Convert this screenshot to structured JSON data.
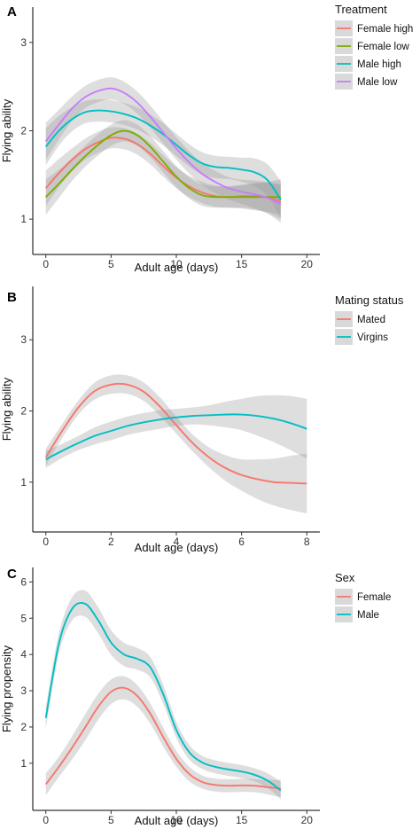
{
  "chart_data": [
    {
      "type": "line",
      "panel_label": "A",
      "xlabel": "Adult age (days)",
      "ylabel": "Flying ability",
      "xlim": [
        -1,
        21
      ],
      "ylim": [
        0.6,
        3.4
      ],
      "xticks": [
        "0",
        "5",
        "10",
        "15",
        "20"
      ],
      "yticks": [
        "1",
        "2",
        "3"
      ],
      "legend_title": "Treatment",
      "legend_position": "right",
      "ribbon": true,
      "series": [
        {
          "name": "Female  high",
          "color": "#F8766D",
          "x": [
            0,
            1,
            2,
            3,
            4,
            5,
            6,
            7,
            8,
            9,
            10,
            11,
            12,
            13,
            14,
            15,
            16,
            17,
            18
          ],
          "y": [
            1.35,
            1.52,
            1.67,
            1.79,
            1.87,
            1.92,
            1.91,
            1.85,
            1.74,
            1.6,
            1.47,
            1.37,
            1.3,
            1.26,
            1.25,
            1.26,
            1.26,
            1.24,
            1.2
          ]
        },
        {
          "name": "Female  low",
          "color": "#7CAE00",
          "x": [
            0,
            1,
            2,
            3,
            4,
            5,
            6,
            7,
            8,
            9,
            10,
            11,
            12,
            13,
            14,
            15,
            16,
            17,
            18
          ],
          "y": [
            1.25,
            1.4,
            1.56,
            1.71,
            1.84,
            1.95,
            2.0,
            1.95,
            1.82,
            1.65,
            1.48,
            1.35,
            1.27,
            1.25,
            1.25,
            1.25,
            1.25,
            1.25,
            1.25
          ]
        },
        {
          "name": "Male  high",
          "color": "#00BFC4",
          "x": [
            0,
            1,
            2,
            3,
            4,
            5,
            6,
            7,
            8,
            9,
            10,
            11,
            12,
            13,
            14,
            15,
            16,
            17,
            18
          ],
          "y": [
            1.82,
            2.0,
            2.13,
            2.21,
            2.23,
            2.22,
            2.19,
            2.14,
            2.06,
            1.96,
            1.84,
            1.72,
            1.63,
            1.59,
            1.58,
            1.56,
            1.53,
            1.44,
            1.22
          ]
        },
        {
          "name": "Male  low",
          "color": "#C77CFF",
          "x": [
            0,
            1,
            2,
            3,
            4,
            5,
            6,
            7,
            8,
            9,
            10,
            11,
            12,
            13,
            14,
            15,
            16,
            17,
            18
          ],
          "y": [
            1.88,
            2.07,
            2.25,
            2.38,
            2.45,
            2.48,
            2.43,
            2.32,
            2.16,
            1.98,
            1.8,
            1.64,
            1.51,
            1.42,
            1.35,
            1.31,
            1.28,
            1.24,
            1.17
          ]
        }
      ]
    },
    {
      "type": "line",
      "panel_label": "B",
      "xlabel": "Adult age (days)",
      "ylabel": "Flying ability",
      "xlim": [
        -0.4,
        8.4
      ],
      "ylim": [
        0.3,
        3.75
      ],
      "xticks": [
        "0",
        "2",
        "4",
        "6",
        "8"
      ],
      "yticks": [
        "1",
        "2",
        "3"
      ],
      "legend_title": "Mating  status",
      "legend_position": "right",
      "ribbon": true,
      "series": [
        {
          "name": "Mated",
          "color": "#F8766D",
          "x": [
            0,
            0.5,
            1,
            1.5,
            2,
            2.5,
            3,
            3.5,
            4,
            4.5,
            5,
            5.5,
            6,
            6.5,
            7,
            7.5,
            8
          ],
          "y": [
            1.35,
            1.72,
            2.05,
            2.28,
            2.37,
            2.37,
            2.27,
            2.06,
            1.8,
            1.55,
            1.35,
            1.2,
            1.1,
            1.04,
            1.0,
            0.99,
            0.98
          ]
        },
        {
          "name": "Virgins",
          "color": "#00BFC4",
          "x": [
            0,
            0.5,
            1,
            1.5,
            2,
            2.5,
            3,
            3.5,
            4,
            4.5,
            5,
            5.5,
            6,
            6.5,
            7,
            7.5,
            8
          ],
          "y": [
            1.32,
            1.44,
            1.55,
            1.65,
            1.72,
            1.79,
            1.84,
            1.88,
            1.91,
            1.93,
            1.94,
            1.95,
            1.95,
            1.93,
            1.89,
            1.83,
            1.75
          ]
        }
      ]
    },
    {
      "type": "line",
      "panel_label": "C",
      "xlabel": "Adult age (days)",
      "ylabel": "Flying propensity",
      "xlim": [
        -1,
        21
      ],
      "ylim": [
        -0.3,
        6.4
      ],
      "xticks": [
        "0",
        "5",
        "10",
        "15",
        "20"
      ],
      "yticks": [
        "1",
        "2",
        "3",
        "4",
        "5",
        "6"
      ],
      "legend_title": "Sex",
      "legend_position": "right",
      "ribbon": true,
      "series": [
        {
          "name": "Female",
          "color": "#F8766D",
          "x": [
            0,
            1,
            2,
            3,
            4,
            5,
            6,
            7,
            8,
            9,
            10,
            11,
            12,
            13,
            14,
            15,
            16,
            17,
            18
          ],
          "y": [
            0.42,
            0.9,
            1.42,
            1.98,
            2.55,
            2.97,
            3.08,
            2.86,
            2.37,
            1.72,
            1.12,
            0.7,
            0.48,
            0.4,
            0.38,
            0.39,
            0.38,
            0.34,
            0.3
          ]
        },
        {
          "name": "Male",
          "color": "#00BFC4",
          "x": [
            0,
            1,
            2,
            3,
            4,
            5,
            6,
            7,
            8,
            9,
            10,
            11,
            12,
            13,
            14,
            15,
            16,
            17,
            18
          ],
          "y": [
            2.25,
            4.3,
            5.25,
            5.4,
            4.95,
            4.33,
            4.0,
            3.88,
            3.65,
            2.9,
            1.92,
            1.3,
            1.02,
            0.9,
            0.83,
            0.77,
            0.68,
            0.52,
            0.25
          ]
        }
      ]
    }
  ]
}
